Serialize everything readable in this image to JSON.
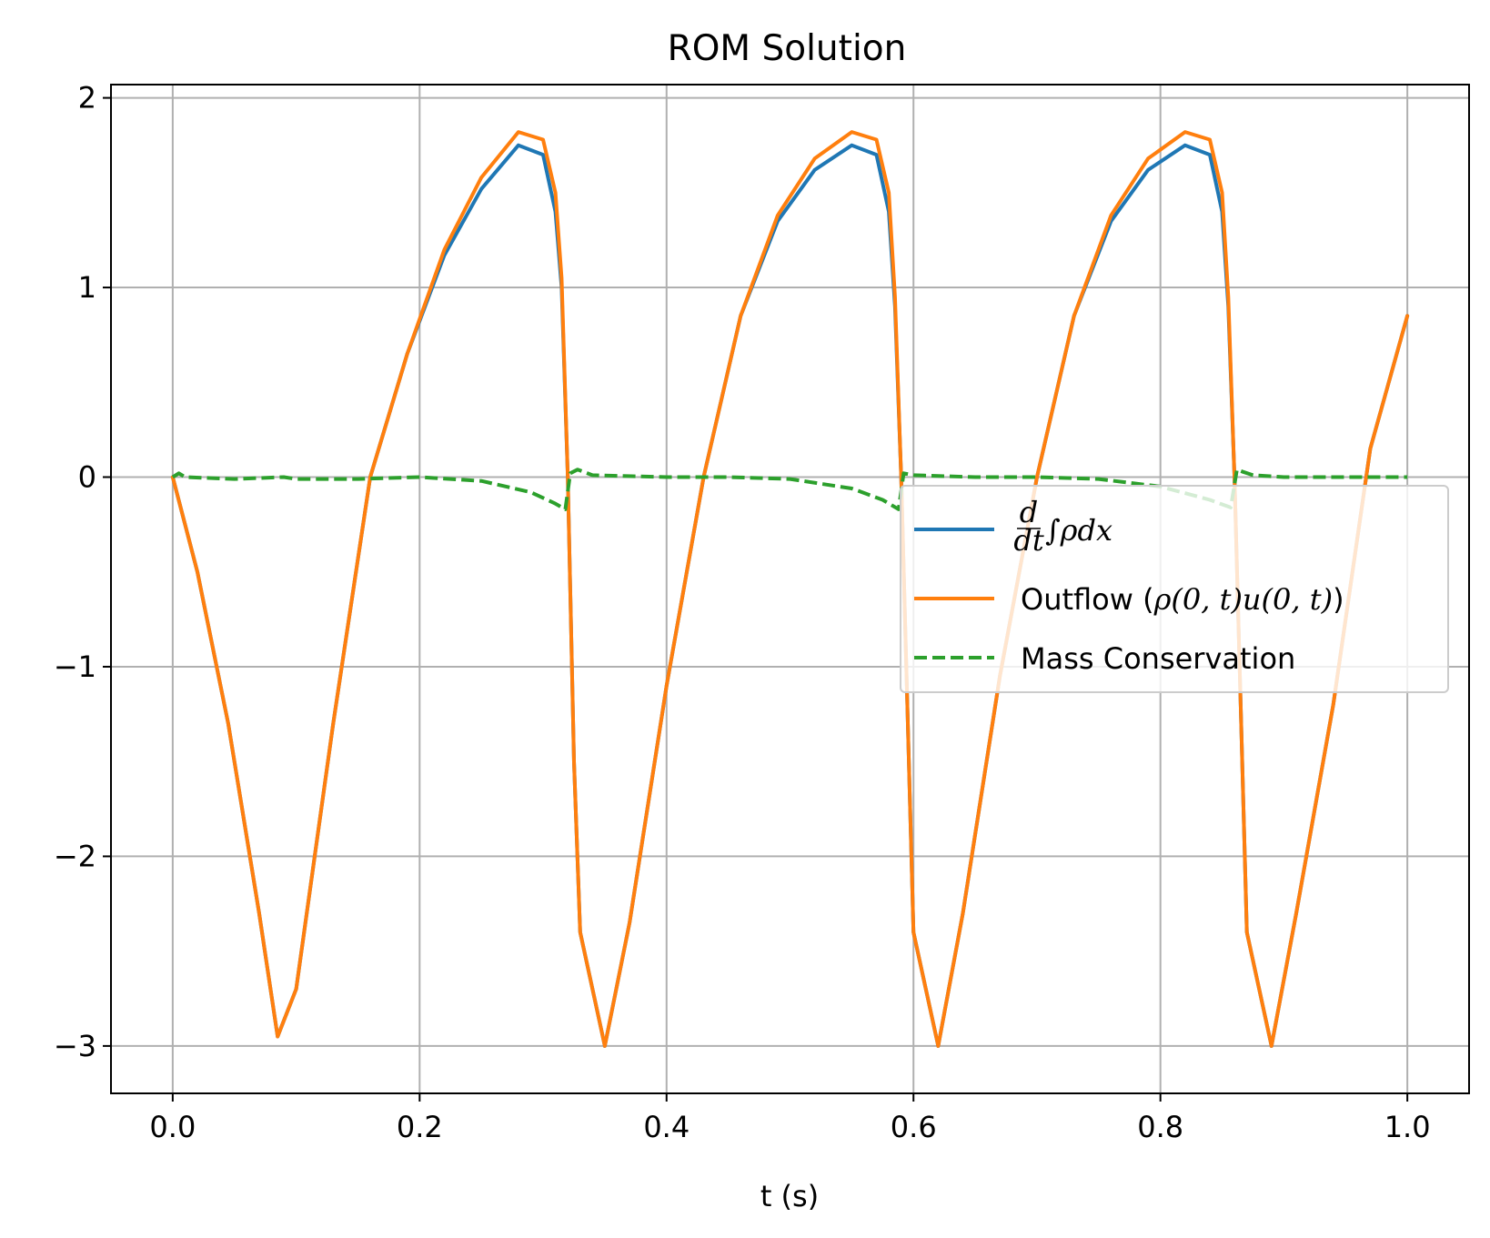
{
  "chart_data": {
    "type": "line",
    "title": "ROM Solution",
    "xlabel": "t (s)",
    "ylabel": "",
    "xlim": [
      -0.05,
      1.05
    ],
    "ylim": [
      -3.25,
      2.07
    ],
    "grid": true,
    "legend_position": "center-right",
    "x_ticks": [
      "0.0",
      "0.2",
      "0.4",
      "0.6",
      "0.8",
      "1.0"
    ],
    "y_ticks": [
      "−3",
      "−2",
      "−1",
      "0",
      "1",
      "2"
    ],
    "series": [
      {
        "name": "d/dt ∫ρdx",
        "legend_frac_num": "d",
        "legend_frac_den": "dt",
        "legend_rest": "∫ρdx",
        "color": "#1f77b4",
        "style": "solid",
        "x": [
          0.0,
          0.02,
          0.045,
          0.07,
          0.085,
          0.1,
          0.13,
          0.16,
          0.19,
          0.22,
          0.25,
          0.28,
          0.3,
          0.31,
          0.315,
          0.32,
          0.325,
          0.33,
          0.35,
          0.37,
          0.4,
          0.43,
          0.46,
          0.49,
          0.52,
          0.55,
          0.57,
          0.58,
          0.585,
          0.59,
          0.6,
          0.62,
          0.64,
          0.67,
          0.7,
          0.73,
          0.76,
          0.79,
          0.82,
          0.84,
          0.85,
          0.855,
          0.86,
          0.87,
          0.89,
          0.91,
          0.94,
          0.97,
          1.0
        ],
        "values": [
          0.0,
          -0.5,
          -1.3,
          -2.3,
          -2.95,
          -2.7,
          -1.3,
          0.0,
          0.65,
          1.17,
          1.52,
          1.75,
          1.7,
          1.4,
          1.0,
          0.0,
          -1.5,
          -2.4,
          -3.0,
          -2.35,
          -1.1,
          0.0,
          0.85,
          1.35,
          1.62,
          1.75,
          1.7,
          1.4,
          0.9,
          0.0,
          -2.4,
          -3.0,
          -2.3,
          -1.05,
          0.0,
          0.85,
          1.35,
          1.62,
          1.75,
          1.7,
          1.4,
          0.9,
          0.0,
          -2.4,
          -3.0,
          -2.3,
          -1.2,
          0.15,
          0.85
        ]
      },
      {
        "name": "Outflow (ρ(0, t)u(0, t))",
        "legend_plain": "Outflow (",
        "legend_math": "ρ(0, t)u(0, t)",
        "legend_close": ")",
        "color": "#ff7f0e",
        "style": "solid",
        "x": [
          0.0,
          0.02,
          0.045,
          0.07,
          0.085,
          0.1,
          0.13,
          0.16,
          0.19,
          0.22,
          0.25,
          0.28,
          0.3,
          0.31,
          0.315,
          0.32,
          0.325,
          0.33,
          0.35,
          0.37,
          0.4,
          0.43,
          0.46,
          0.49,
          0.52,
          0.55,
          0.57,
          0.58,
          0.585,
          0.59,
          0.6,
          0.62,
          0.64,
          0.67,
          0.7,
          0.73,
          0.76,
          0.79,
          0.82,
          0.84,
          0.85,
          0.855,
          0.86,
          0.87,
          0.89,
          0.91,
          0.94,
          0.97,
          1.0
        ],
        "values": [
          0.0,
          -0.5,
          -1.3,
          -2.3,
          -2.95,
          -2.7,
          -1.3,
          0.0,
          0.65,
          1.2,
          1.58,
          1.82,
          1.78,
          1.5,
          1.05,
          0.0,
          -1.5,
          -2.4,
          -3.0,
          -2.35,
          -1.1,
          0.0,
          0.85,
          1.38,
          1.68,
          1.82,
          1.78,
          1.5,
          0.95,
          0.0,
          -2.4,
          -3.0,
          -2.3,
          -1.05,
          0.0,
          0.85,
          1.38,
          1.68,
          1.82,
          1.78,
          1.5,
          0.95,
          0.0,
          -2.4,
          -3.0,
          -2.3,
          -1.2,
          0.15,
          0.85
        ]
      },
      {
        "name": "Mass Conservation",
        "color": "#2ca02c",
        "style": "dashed",
        "x": [
          0.0,
          0.005,
          0.01,
          0.05,
          0.09,
          0.1,
          0.15,
          0.2,
          0.25,
          0.29,
          0.31,
          0.318,
          0.322,
          0.328,
          0.34,
          0.4,
          0.45,
          0.5,
          0.55,
          0.575,
          0.588,
          0.592,
          0.6,
          0.65,
          0.7,
          0.75,
          0.8,
          0.84,
          0.857,
          0.862,
          0.866,
          0.875,
          0.9,
          0.95,
          1.0
        ],
        "values": [
          0.0,
          0.02,
          0.0,
          -0.01,
          0.0,
          -0.01,
          -0.01,
          0.0,
          -0.02,
          -0.08,
          -0.14,
          -0.17,
          0.02,
          0.04,
          0.01,
          0.0,
          0.0,
          -0.01,
          -0.06,
          -0.12,
          -0.17,
          0.02,
          0.01,
          0.0,
          0.0,
          -0.01,
          -0.05,
          -0.12,
          -0.16,
          0.04,
          0.03,
          0.01,
          0.0,
          0.0,
          0.0
        ]
      }
    ]
  }
}
